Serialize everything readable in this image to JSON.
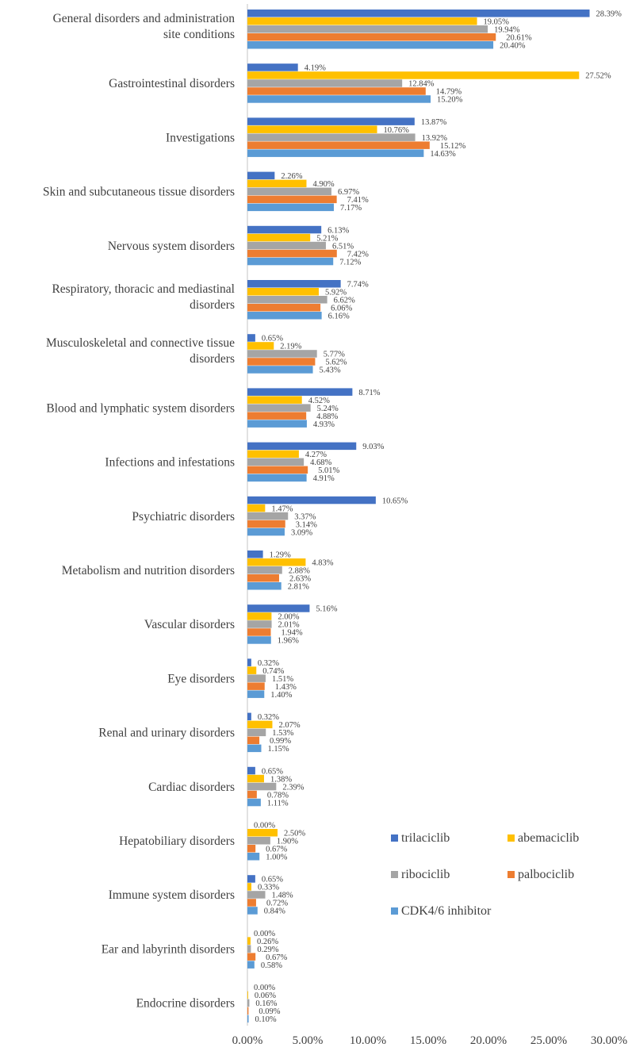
{
  "chart_data": {
    "type": "bar",
    "orientation": "horizontal",
    "title": "",
    "xlabel": "",
    "ylabel": "",
    "xlim": [
      0,
      30
    ],
    "x_ticks": [
      "0.00%",
      "5.00%",
      "10.00%",
      "15.00%",
      "20.00%",
      "25.00%",
      "30.00%"
    ],
    "grid": false,
    "legend_placement": "bottom-right",
    "categories": [
      "General disorders and administration site conditions",
      "Gastrointestinal disorders",
      "Investigations",
      "Skin and subcutaneous tissue disorders",
      "Nervous system disorders",
      "Respiratory, thoracic and mediastinal disorders",
      "Musculoskeletal and connective tissue disorders",
      "Blood and lymphatic system disorders",
      "Infections and infestations",
      "Psychiatric disorders",
      "Metabolism and nutrition disorders",
      "Vascular disorders",
      "Eye disorders",
      "Renal and urinary disorders",
      "Cardiac disorders",
      "Hepatobiliary disorders",
      "Immune system disorders",
      "Ear and labyrinth disorders",
      "Endocrine disorders"
    ],
    "series": [
      {
        "name": "trilaciclib",
        "color": "#4472C4",
        "values": [
          28.39,
          4.19,
          13.87,
          2.26,
          6.13,
          7.74,
          0.65,
          8.71,
          9.03,
          10.65,
          1.29,
          5.16,
          0.32,
          0.32,
          0.65,
          0.0,
          0.65,
          0.0,
          0.0
        ]
      },
      {
        "name": "abemaciclib",
        "color": "#FFC000",
        "values": [
          19.05,
          27.52,
          10.76,
          4.9,
          5.21,
          5.92,
          2.19,
          4.52,
          4.27,
          1.47,
          4.83,
          2.0,
          0.74,
          2.07,
          1.38,
          2.5,
          0.33,
          0.26,
          0.06
        ]
      },
      {
        "name": "ribociclib",
        "color": "#A5A5A5",
        "values": [
          19.94,
          12.84,
          13.92,
          6.97,
          6.51,
          6.62,
          5.77,
          5.24,
          4.68,
          3.37,
          2.88,
          2.01,
          1.51,
          1.53,
          2.39,
          1.9,
          1.48,
          0.29,
          0.16
        ]
      },
      {
        "name": "palbociclib",
        "color": "#ED7D31",
        "values": [
          20.61,
          14.79,
          15.12,
          7.41,
          7.42,
          6.06,
          5.62,
          4.88,
          5.01,
          3.14,
          2.63,
          1.94,
          1.43,
          0.99,
          0.78,
          0.67,
          0.72,
          0.67,
          0.09
        ]
      },
      {
        "name": "CDK4/6 inhibitor",
        "color": "#5B9BD5",
        "values": [
          20.4,
          15.2,
          14.63,
          7.17,
          7.12,
          6.16,
          5.43,
          4.93,
          4.91,
          3.09,
          2.81,
          1.96,
          1.4,
          1.15,
          1.11,
          1.0,
          0.84,
          0.58,
          0.1
        ]
      }
    ]
  }
}
